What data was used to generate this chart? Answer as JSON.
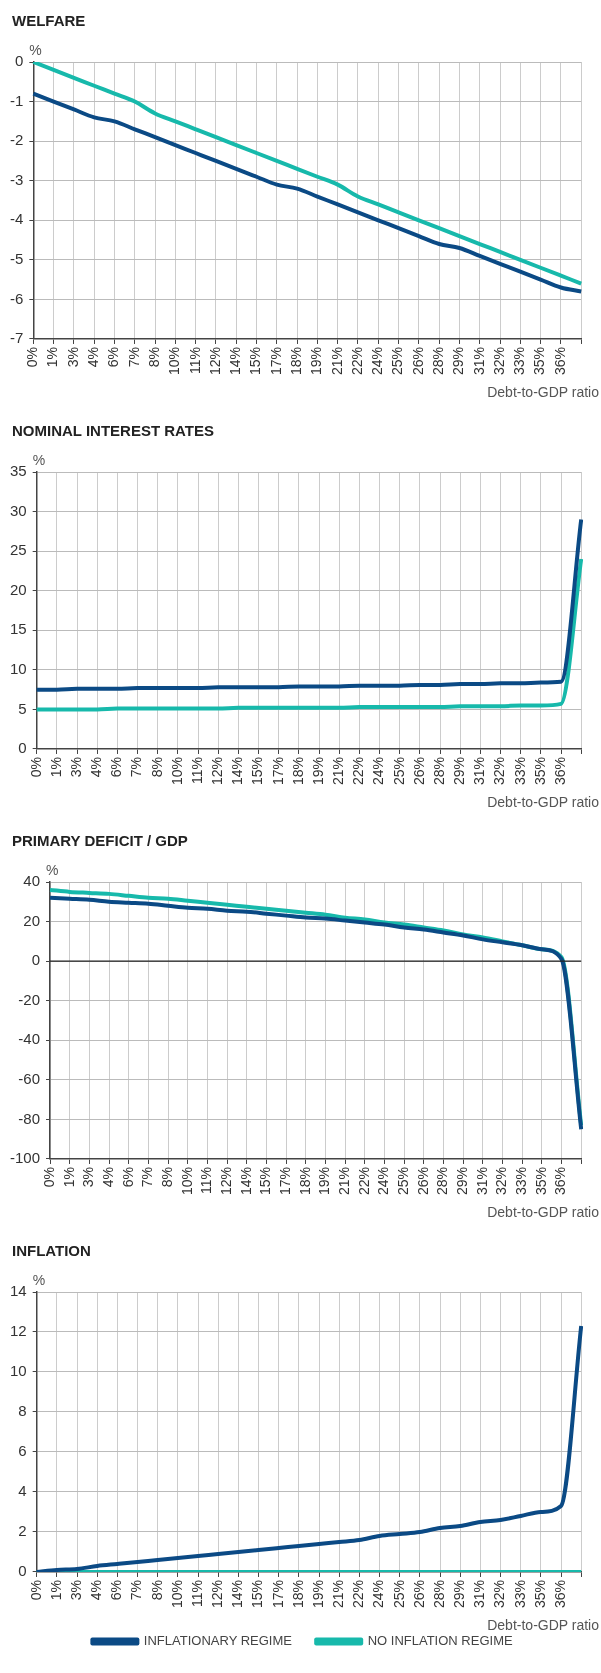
{
  "chart_data": [
    {
      "type": "line",
      "title": "WELFARE",
      "ylabel": "%",
      "xlabel": "Debt-to-GDP ratio",
      "categories": [
        "0%",
        "1%",
        "3%",
        "4%",
        "6%",
        "7%",
        "8%",
        "10%",
        "11%",
        "12%",
        "14%",
        "15%",
        "17%",
        "18%",
        "19%",
        "21%",
        "22%",
        "24%",
        "25%",
        "26%",
        "28%",
        "29%",
        "31%",
        "32%",
        "33%",
        "35%",
        "36%",
        null
      ],
      "series": [
        {
          "color": "#0b4a85",
          "values": [
            -0.8,
            -1.0,
            -1.2,
            -1.4,
            -1.5,
            -1.7,
            -1.9,
            -2.1,
            -2.3,
            -2.5,
            -2.7,
            -2.9,
            -3.1,
            -3.2,
            -3.4,
            -3.6,
            -3.8,
            -4.0,
            -4.2,
            -4.4,
            -4.6,
            -4.7,
            -4.9,
            -5.1,
            -5.3,
            -5.5,
            -5.7,
            -5.8
          ]
        },
        {
          "color": "#17b9ab",
          "values": [
            0,
            -0.2,
            -0.4,
            -0.6,
            -0.8,
            -1.0,
            -1.3,
            -1.5,
            -1.7,
            -1.9,
            -2.1,
            -2.3,
            -2.5,
            -2.7,
            -2.9,
            -3.1,
            -3.4,
            -3.6,
            -3.8,
            -4.0,
            -4.2,
            -4.4,
            -4.6,
            -4.8,
            -5.0,
            -5.2,
            -5.4,
            -5.6
          ]
        }
      ],
      "ylim": [
        -7,
        0
      ],
      "yticks": [
        -7,
        -6,
        -5,
        -4,
        -3,
        -2,
        -1,
        0
      ],
      "grid": true,
      "legend": false,
      "marker": "none",
      "line_style": "solid"
    },
    {
      "type": "line",
      "title": "NOMINAL INTEREST RATES",
      "ylabel": "%",
      "xlabel": "Debt-to-GDP ratio",
      "categories": [
        "0%",
        "1%",
        "3%",
        "4%",
        "6%",
        "7%",
        "8%",
        "10%",
        "11%",
        "12%",
        "14%",
        "15%",
        "17%",
        "18%",
        "19%",
        "21%",
        "22%",
        "24%",
        "25%",
        "26%",
        "28%",
        "29%",
        "31%",
        "32%",
        "33%",
        "35%",
        "36%",
        null
      ],
      "series": [
        {
          "color": "#0b4a85",
          "values": [
            7.5,
            7.5,
            7.6,
            7.6,
            7.6,
            7.7,
            7.7,
            7.7,
            7.7,
            7.8,
            7.8,
            7.8,
            7.8,
            7.9,
            7.9,
            7.9,
            8.0,
            8.0,
            8.0,
            8.1,
            8.1,
            8.2,
            8.2,
            8.3,
            8.3,
            8.4,
            8.5,
            29
          ]
        },
        {
          "color": "#17b9ab",
          "values": [
            5.0,
            5.0,
            5.0,
            5.0,
            5.1,
            5.1,
            5.1,
            5.1,
            5.1,
            5.1,
            5.2,
            5.2,
            5.2,
            5.2,
            5.2,
            5.2,
            5.3,
            5.3,
            5.3,
            5.3,
            5.3,
            5.4,
            5.4,
            5.4,
            5.5,
            5.5,
            5.7,
            24
          ]
        }
      ],
      "ylim": [
        0,
        35
      ],
      "yticks": [
        0,
        5,
        10,
        15,
        20,
        25,
        30,
        35
      ],
      "grid": true,
      "legend": false,
      "marker": "none",
      "line_style": "solid"
    },
    {
      "type": "line",
      "title": "PRIMARY DEFICIT / GDP",
      "ylabel": "%",
      "xlabel": "Debt-to-GDP ratio",
      "categories": [
        "0%",
        "1%",
        "3%",
        "4%",
        "6%",
        "7%",
        "8%",
        "10%",
        "11%",
        "12%",
        "14%",
        "15%",
        "17%",
        "18%",
        "19%",
        "21%",
        "22%",
        "24%",
        "25%",
        "26%",
        "28%",
        "29%",
        "31%",
        "32%",
        "33%",
        "35%",
        "36%",
        null
      ],
      "series": [
        {
          "color": "#0b4a85",
          "values": [
            32,
            31.5,
            31,
            30,
            29.5,
            29,
            28,
            27,
            26.5,
            25.5,
            25,
            24,
            23,
            22,
            21.5,
            20.5,
            19.5,
            18.5,
            17,
            16,
            14.5,
            13,
            11,
            9.5,
            8,
            6,
            1,
            -85
          ]
        },
        {
          "color": "#17b9ab",
          "values": [
            36,
            35,
            34.5,
            34,
            33,
            32,
            31.5,
            30.5,
            29.5,
            28.5,
            27.5,
            26.5,
            25.5,
            24.5,
            23.5,
            22,
            21,
            19.5,
            18.5,
            17,
            15.5,
            13.5,
            12,
            10,
            8,
            6,
            2,
            -83
          ]
        }
      ],
      "ylim": [
        -100,
        40
      ],
      "yticks": [
        -100,
        -80,
        -60,
        -40,
        -20,
        0,
        20,
        40
      ],
      "grid": true,
      "legend": false,
      "marker": "none",
      "line_style": "solid",
      "ref_lines": [
        {
          "axis": "y",
          "value": 0,
          "color": "#222222"
        }
      ]
    },
    {
      "type": "line",
      "title": "INFLATION",
      "ylabel": "%",
      "xlabel": "Debt-to-GDP ratio",
      "categories": [
        "0%",
        "1%",
        "3%",
        "4%",
        "6%",
        "7%",
        "8%",
        "10%",
        "11%",
        "12%",
        "14%",
        "15%",
        "17%",
        "18%",
        "19%",
        "21%",
        "22%",
        "24%",
        "25%",
        "26%",
        "28%",
        "29%",
        "31%",
        "32%",
        "33%",
        "35%",
        "36%",
        null
      ],
      "series": [
        {
          "name": "INFLATIONARY REGIME",
          "color": "#0b4a85",
          "values": [
            0,
            0.1,
            0.15,
            0.3,
            0.4,
            0.5,
            0.6,
            0.7,
            0.8,
            0.9,
            1.0,
            1.1,
            1.2,
            1.3,
            1.4,
            1.5,
            1.6,
            1.8,
            1.9,
            2.0,
            2.2,
            2.3,
            2.5,
            2.6,
            2.8,
            3.0,
            3.3,
            12.3
          ]
        },
        {
          "name": "NO INFLATION REGIME",
          "color": "#17b9ab",
          "values": [
            0,
            0,
            0,
            0,
            0,
            0,
            0,
            0,
            0,
            0,
            0,
            0,
            0,
            0,
            0,
            0,
            0,
            0,
            0,
            0,
            0,
            0,
            0,
            0,
            0,
            0,
            0,
            0
          ]
        }
      ],
      "ylim": [
        0,
        14
      ],
      "yticks": [
        0,
        2,
        4,
        6,
        8,
        10,
        12,
        14
      ],
      "grid": true,
      "legend": "bottom",
      "marker": "none",
      "line_style": "solid"
    }
  ]
}
